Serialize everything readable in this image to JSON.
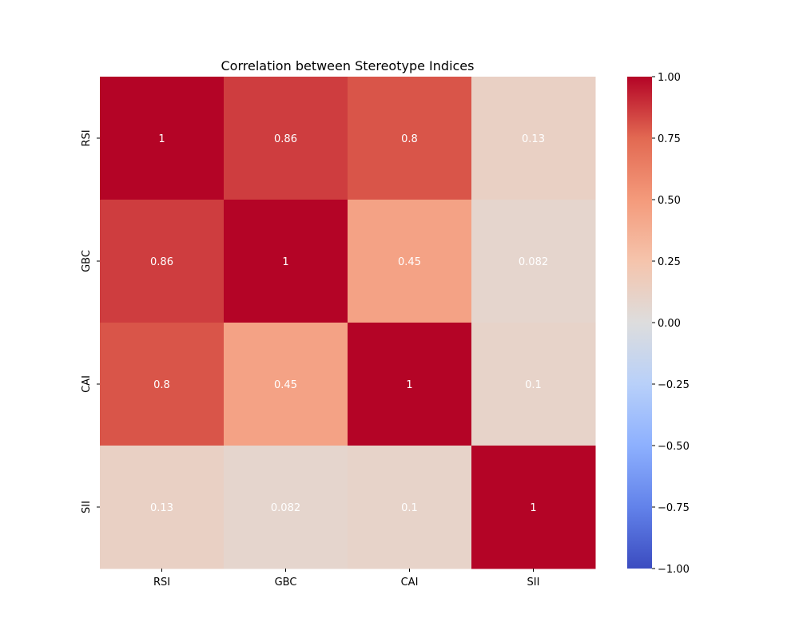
{
  "chart_data": {
    "type": "heatmap",
    "title": "Correlation between Stereotype Indices",
    "xlabel": "",
    "ylabel": "",
    "x_categories": [
      "RSI",
      "GBC",
      "CAI",
      "SII"
    ],
    "y_categories": [
      "RSI",
      "GBC",
      "CAI",
      "SII"
    ],
    "values": [
      [
        1,
        0.86,
        0.8,
        0.13
      ],
      [
        0.86,
        1,
        0.45,
        0.082
      ],
      [
        0.8,
        0.45,
        1,
        0.1
      ],
      [
        0.13,
        0.082,
        0.1,
        1
      ]
    ],
    "cell_labels": [
      [
        "1",
        "0.86",
        "0.8",
        "0.13"
      ],
      [
        "0.86",
        "1",
        "0.45",
        "0.082"
      ],
      [
        "0.8",
        "0.45",
        "1",
        "0.1"
      ],
      [
        "0.13",
        "0.082",
        "0.1",
        "1"
      ]
    ],
    "colormap": "coolwarm",
    "vmin": -1,
    "vmax": 1,
    "colorbar_ticks": [
      1.0,
      0.75,
      0.5,
      0.25,
      0.0,
      -0.25,
      -0.5,
      -0.75,
      -1.0
    ],
    "colorbar_tick_labels": [
      "1.00",
      "0.75",
      "0.50",
      "0.25",
      "0.00",
      "−0.25",
      "−0.50",
      "−0.75",
      "−1.00"
    ],
    "colors": {
      "low": "#3b4cc0",
      "mid": "#dddddd",
      "high": "#b40426",
      "annotation_text": "#ffffff",
      "axis_text": "#000000"
    }
  }
}
